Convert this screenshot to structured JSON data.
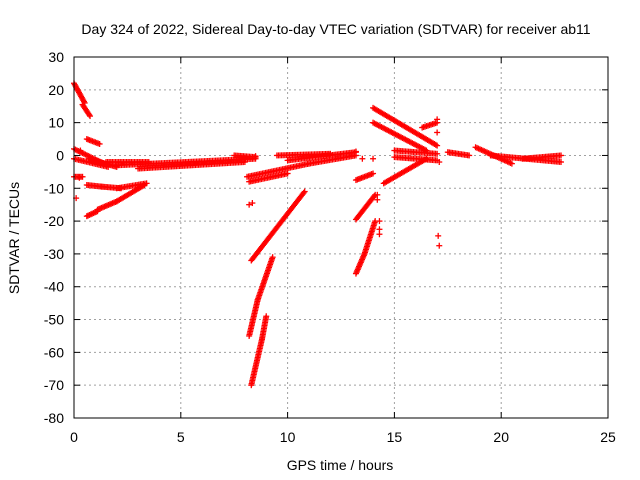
{
  "chart_data": {
    "type": "scatter",
    "title": "Day 324 of 2022, Sidereal Day-to-day VTEC variation (SDTVAR) for receiver ab11",
    "xlabel": "GPS time / hours",
    "ylabel": "SDTVAR / TECUs",
    "xlim": [
      0,
      25
    ],
    "ylim": [
      -80,
      30
    ],
    "xticks": [
      0,
      5,
      10,
      15,
      20,
      25
    ],
    "yticks": [
      -80,
      -70,
      -60,
      -50,
      -40,
      -30,
      -20,
      -10,
      0,
      10,
      20,
      30
    ],
    "xtick_labels": [
      "0",
      "5",
      "10",
      "15",
      "20",
      "25"
    ],
    "ytick_labels": [
      "-80",
      "-70",
      "-60",
      "-50",
      "-40",
      "-30",
      "-20",
      "-10",
      "0",
      "10",
      "20",
      "30"
    ],
    "grid": true,
    "marker": "plus",
    "color": "#ff0000",
    "segments": [
      {
        "from": [
          0.0,
          22.0
        ],
        "to": [
          0.5,
          16.0
        ]
      },
      {
        "from": [
          0.4,
          15.5
        ],
        "to": [
          0.75,
          12.0
        ]
      },
      {
        "from": [
          0.0,
          2.0
        ],
        "to": [
          1.4,
          -2.5
        ]
      },
      {
        "from": [
          0.0,
          -1.0
        ],
        "to": [
          1.6,
          -3.5
        ]
      },
      {
        "from": [
          0.0,
          -6.5
        ],
        "to": [
          0.4,
          -6.5
        ]
      },
      {
        "from": [
          0.6,
          5.0
        ],
        "to": [
          1.2,
          3.5
        ]
      },
      {
        "from": [
          0.6,
          -9.0
        ],
        "to": [
          1.3,
          -9.5
        ]
      },
      {
        "from": [
          1.3,
          -9.5
        ],
        "to": [
          2.2,
          -10.0
        ]
      },
      {
        "from": [
          2.0,
          -10.0
        ],
        "to": [
          3.4,
          -8.5
        ]
      },
      {
        "from": [
          0.6,
          -18.5
        ],
        "to": [
          1.1,
          -17.0
        ]
      },
      {
        "from": [
          1.1,
          -16.5
        ],
        "to": [
          2.0,
          -14.0
        ]
      },
      {
        "from": [
          2.0,
          -14.0
        ],
        "to": [
          3.3,
          -9.0
        ]
      },
      {
        "from": [
          0.7,
          -1.0
        ],
        "to": [
          2.0,
          -3.5
        ]
      },
      {
        "from": [
          1.5,
          -2.0
        ],
        "to": [
          3.5,
          -2.0
        ]
      },
      {
        "from": [
          2.0,
          -3.0
        ],
        "to": [
          8.5,
          -1.0
        ]
      },
      {
        "from": [
          3.0,
          -4.0
        ],
        "to": [
          8.0,
          -2.0
        ]
      },
      {
        "from": [
          7.5,
          0.0
        ],
        "to": [
          8.5,
          -0.5
        ]
      },
      {
        "from": [
          8.1,
          -6.5
        ],
        "to": [
          11.0,
          -2.5
        ]
      },
      {
        "from": [
          8.2,
          -8.0
        ],
        "to": [
          10.0,
          -5.5
        ]
      },
      {
        "from": [
          8.3,
          -32.0
        ],
        "to": [
          10.8,
          -11.0
        ]
      },
      {
        "from": [
          8.2,
          -55.0
        ],
        "to": [
          8.6,
          -44.0
        ]
      },
      {
        "from": [
          8.6,
          -44.0
        ],
        "to": [
          9.3,
          -31.0
        ]
      },
      {
        "from": [
          8.3,
          -70.0
        ],
        "to": [
          8.8,
          -56.0
        ]
      },
      {
        "from": [
          8.8,
          -56.0
        ],
        "to": [
          9.0,
          -49.0
        ]
      },
      {
        "from": [
          9.5,
          0.0
        ],
        "to": [
          12.0,
          0.5
        ]
      },
      {
        "from": [
          10.0,
          -1.5
        ],
        "to": [
          13.2,
          1.0
        ]
      },
      {
        "from": [
          11.0,
          -2.5
        ],
        "to": [
          13.2,
          0.0
        ]
      },
      {
        "from": [
          13.2,
          -7.5
        ],
        "to": [
          14.0,
          -5.5
        ]
      },
      {
        "from": [
          13.2,
          -19.5
        ],
        "to": [
          14.1,
          -12.0
        ]
      },
      {
        "from": [
          13.2,
          -36.0
        ],
        "to": [
          13.6,
          -30.0
        ]
      },
      {
        "from": [
          13.6,
          -30.0
        ],
        "to": [
          14.1,
          -20.0
        ]
      },
      {
        "from": [
          14.0,
          14.5
        ],
        "to": [
          17.0,
          3.0
        ]
      },
      {
        "from": [
          14.0,
          10.0
        ],
        "to": [
          16.5,
          1.5
        ]
      },
      {
        "from": [
          14.5,
          -8.5
        ],
        "to": [
          16.5,
          -1.0
        ]
      },
      {
        "from": [
          15.0,
          1.5
        ],
        "to": [
          17.0,
          0.5
        ]
      },
      {
        "from": [
          15.0,
          -0.5
        ],
        "to": [
          17.0,
          -1.5
        ]
      },
      {
        "from": [
          16.3,
          8.5
        ],
        "to": [
          17.0,
          10.0
        ]
      },
      {
        "from": [
          17.5,
          1.0
        ],
        "to": [
          18.5,
          0.0
        ]
      },
      {
        "from": [
          18.8,
          2.5
        ],
        "to": [
          20.5,
          -2.5
        ]
      },
      {
        "from": [
          19.5,
          0.0
        ],
        "to": [
          22.8,
          -2.0
        ]
      },
      {
        "from": [
          21.0,
          -1.0
        ],
        "to": [
          22.8,
          0.0
        ]
      }
    ],
    "points": [
      [
        0.1,
        -13.0
      ],
      [
        0.3,
        1.5
      ],
      [
        0.25,
        -6.8
      ],
      [
        8.0,
        -0.8
      ],
      [
        8.2,
        -15.0
      ],
      [
        8.35,
        -14.5
      ],
      [
        8.5,
        -0.2
      ],
      [
        13.2,
        1.2
      ],
      [
        13.5,
        -1.0
      ],
      [
        14.0,
        -1.0
      ],
      [
        14.2,
        -12.0
      ],
      [
        14.2,
        -13.5
      ],
      [
        14.3,
        -20.0
      ],
      [
        14.3,
        -22.5
      ],
      [
        14.3,
        -24.0
      ],
      [
        17.0,
        11.0
      ],
      [
        17.0,
        7.0
      ],
      [
        17.1,
        -2.0
      ],
      [
        17.05,
        -24.5
      ],
      [
        17.1,
        -27.5
      ]
    ]
  }
}
